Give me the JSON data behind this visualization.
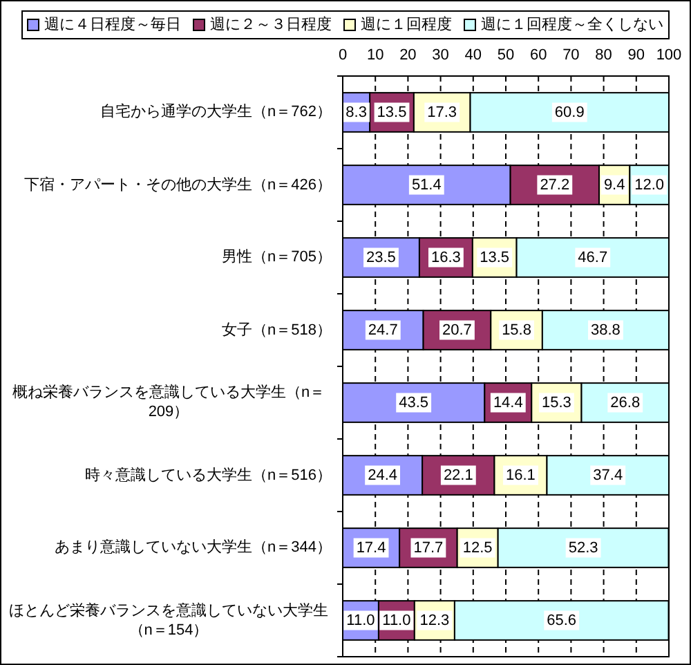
{
  "chart_data": {
    "type": "bar",
    "orientation": "horizontal",
    "stacked": true,
    "categories": [
      "自宅から通学の大学生（n＝762）",
      "下宿・アパート・その他の大学生（n＝426）",
      "男性（n＝705）",
      "女子（n＝518）",
      "概ね栄養バランスを意識している大学生（n＝209）",
      "時々意識している大学生（n＝516）",
      "あまり意識していない大学生（n＝344）",
      "ほとんど栄養バランスを意識していない大学生（n＝154）"
    ],
    "series": [
      {
        "name": "週に４日程度～毎日",
        "color": "#9999ff",
        "values": [
          8.3,
          51.4,
          23.5,
          24.7,
          43.5,
          24.4,
          17.4,
          11.0
        ],
        "value_labels": [
          "8.3",
          "51.4",
          "23.5",
          "24.7",
          "43.5",
          "24.4",
          "17.4",
          "11.0"
        ]
      },
      {
        "name": "週に２～３日程度",
        "color": "#993366",
        "values": [
          13.5,
          27.2,
          16.3,
          20.7,
          14.4,
          22.1,
          17.7,
          11.0
        ],
        "value_labels": [
          "13.5",
          "27.2",
          "16.3",
          "20.7",
          "14.4",
          "22.1",
          "17.7",
          "11.0"
        ]
      },
      {
        "name": "週に１回程度",
        "color": "#ffffcc",
        "values": [
          17.3,
          9.4,
          13.5,
          15.8,
          15.3,
          16.1,
          12.5,
          12.3
        ],
        "value_labels": [
          "17.3",
          "9.4",
          "13.5",
          "15.8",
          "15.3",
          "16.1",
          "12.5",
          "12.3"
        ]
      },
      {
        "name": "週に１回程度～全くしない",
        "color": "#ccffff",
        "values": [
          60.9,
          12.0,
          46.7,
          38.8,
          26.8,
          37.4,
          52.3,
          65.6
        ],
        "value_labels": [
          "60.9",
          "12.0",
          "46.7",
          "38.8",
          "26.8",
          "37.4",
          "52.3",
          "65.6"
        ]
      }
    ],
    "xlim": [
      0,
      100
    ],
    "xticks": [
      0,
      10,
      20,
      30,
      40,
      50,
      60,
      70,
      80,
      90,
      100
    ],
    "grid": "x",
    "legend": "top"
  }
}
